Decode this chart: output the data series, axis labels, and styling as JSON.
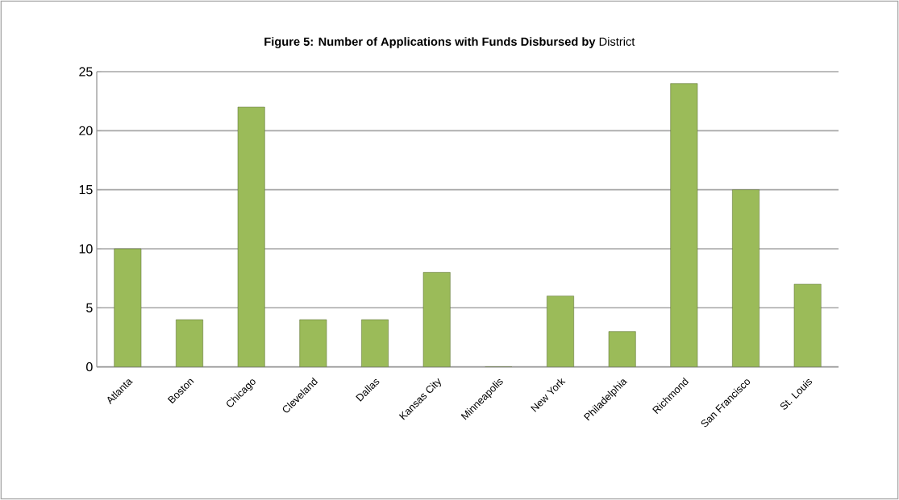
{
  "chart_data": {
    "type": "bar",
    "title": "**Figure 5: Number of Applications with Funds Disbursed by** District",
    "categories": [
      "Atlanta",
      "Boston",
      "Chicago",
      "Cleveland",
      "Dallas",
      "Kansas City",
      "Minneapolis",
      "New York",
      "Philadelphia",
      "Richmond",
      "San Francisco",
      "St. Louis"
    ],
    "values": [
      10,
      4,
      22,
      4,
      4,
      8,
      0,
      6,
      3,
      24,
      15,
      7
    ],
    "color": "#9bbb59",
    "ylim": [
      0,
      25
    ],
    "yticks": [
      0,
      5,
      10,
      15,
      20,
      25
    ],
    "grid": "y"
  }
}
